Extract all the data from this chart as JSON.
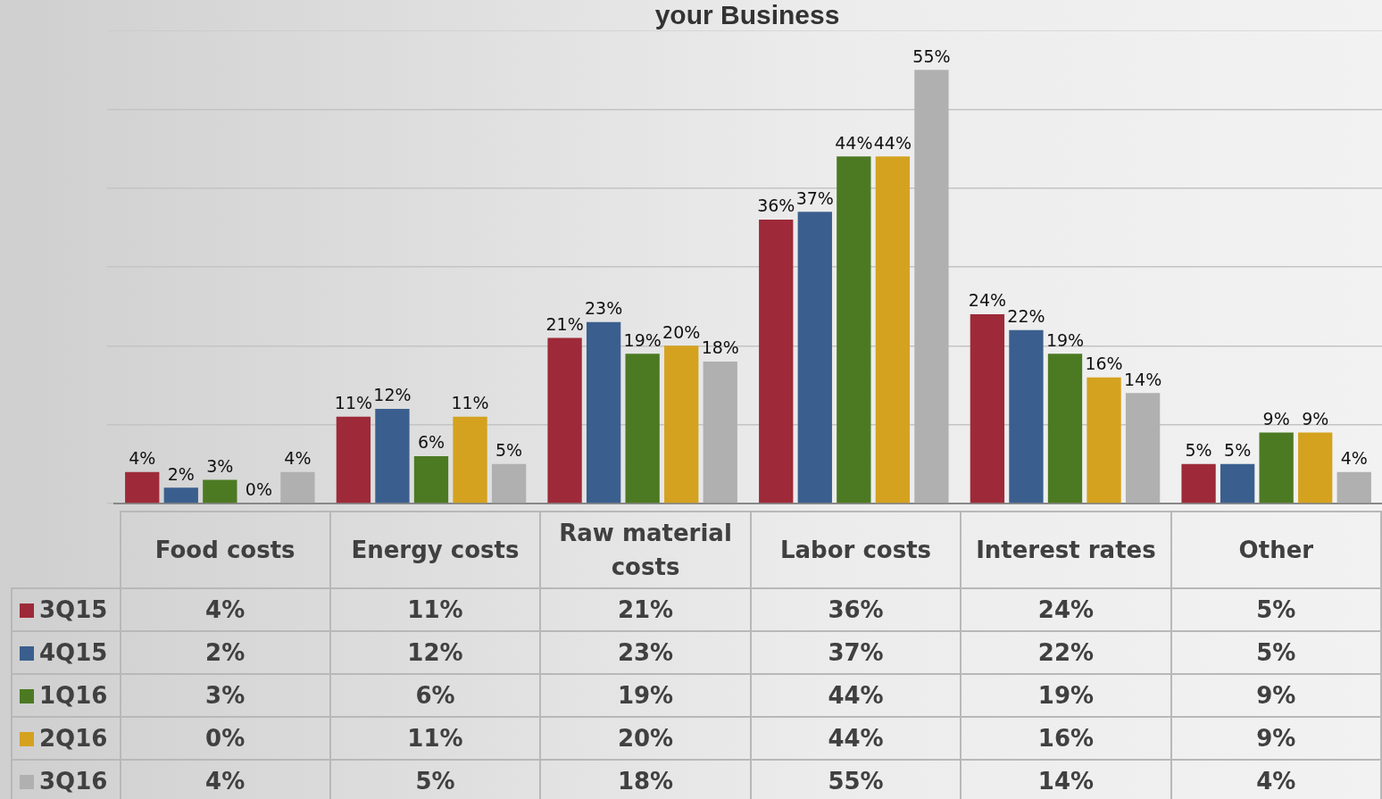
{
  "chart_data": {
    "type": "bar",
    "title": "your Business",
    "categories": [
      "Food costs",
      "Energy costs",
      "Raw material costs",
      "Labor costs",
      "Interest rates",
      "Other"
    ],
    "series": [
      {
        "name": "3Q15",
        "color": "#9e2a39",
        "values": [
          4,
          11,
          21,
          36,
          24,
          5
        ],
        "value_labels": [
          "4%",
          "11%",
          "21%",
          "36%",
          "24%",
          "5%"
        ]
      },
      {
        "name": "4Q15",
        "color": "#3a5f8e",
        "values": [
          2,
          12,
          23,
          37,
          22,
          5
        ],
        "value_labels": [
          "2%",
          "12%",
          "23%",
          "37%",
          "22%",
          "5%"
        ]
      },
      {
        "name": "1Q16",
        "color": "#4c7a22",
        "values": [
          3,
          6,
          19,
          44,
          19,
          9
        ],
        "value_labels": [
          "3%",
          "6%",
          "19%",
          "44%",
          "19%",
          "9%"
        ]
      },
      {
        "name": "2Q16",
        "color": "#d4a21f",
        "values": [
          0,
          11,
          20,
          44,
          16,
          9
        ],
        "value_labels": [
          "0%",
          "11%",
          "20%",
          "44%",
          "16%",
          "9%"
        ]
      },
      {
        "name": "3Q16",
        "color": "#b0b0b0",
        "values": [
          4,
          5,
          18,
          55,
          14,
          4
        ],
        "value_labels": [
          "4%",
          "5%",
          "18%",
          "55%",
          "14%",
          "4%"
        ]
      }
    ],
    "grid": "y",
    "tick_labels": false,
    "legend": "bottom left"
  }
}
